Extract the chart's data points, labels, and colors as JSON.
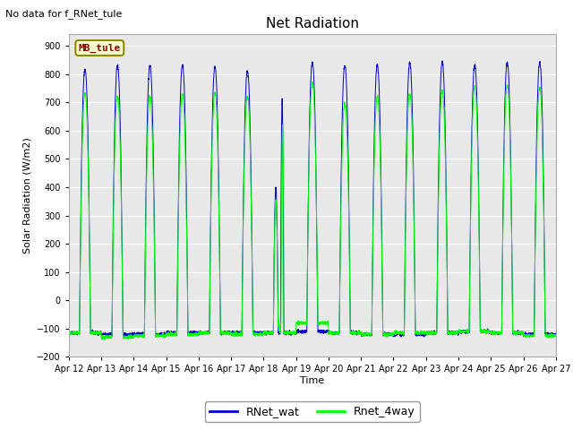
{
  "title": "Net Radiation",
  "xlabel": "Time",
  "ylabel": "Solar Radiation (W/m2)",
  "top_left_text": "No data for f_RNet_tule",
  "annotation_box_text": "MB_tule",
  "annotation_box_color": "#FFFFD0",
  "annotation_box_border_color": "#8B8B00",
  "annotation_text_color": "#8B0000",
  "ylim": [
    -200,
    940
  ],
  "plot_bg_color": "#E8E8E8",
  "fig_bg_color": "#FFFFFF",
  "line1_color": "#0000CC",
  "line2_color": "#00FF00",
  "line1_label": "RNet_wat",
  "line2_label": "Rnet_4way",
  "num_days": 15,
  "x_tick_labels": [
    "Apr 12",
    "Apr 13",
    "Apr 14",
    "Apr 15",
    "Apr 16",
    "Apr 17",
    "Apr 18",
    "Apr 19",
    "Apr 20",
    "Apr 21",
    "Apr 22",
    "Apr 23",
    "Apr 24",
    "Apr 25",
    "Apr 26",
    "Apr 27"
  ]
}
